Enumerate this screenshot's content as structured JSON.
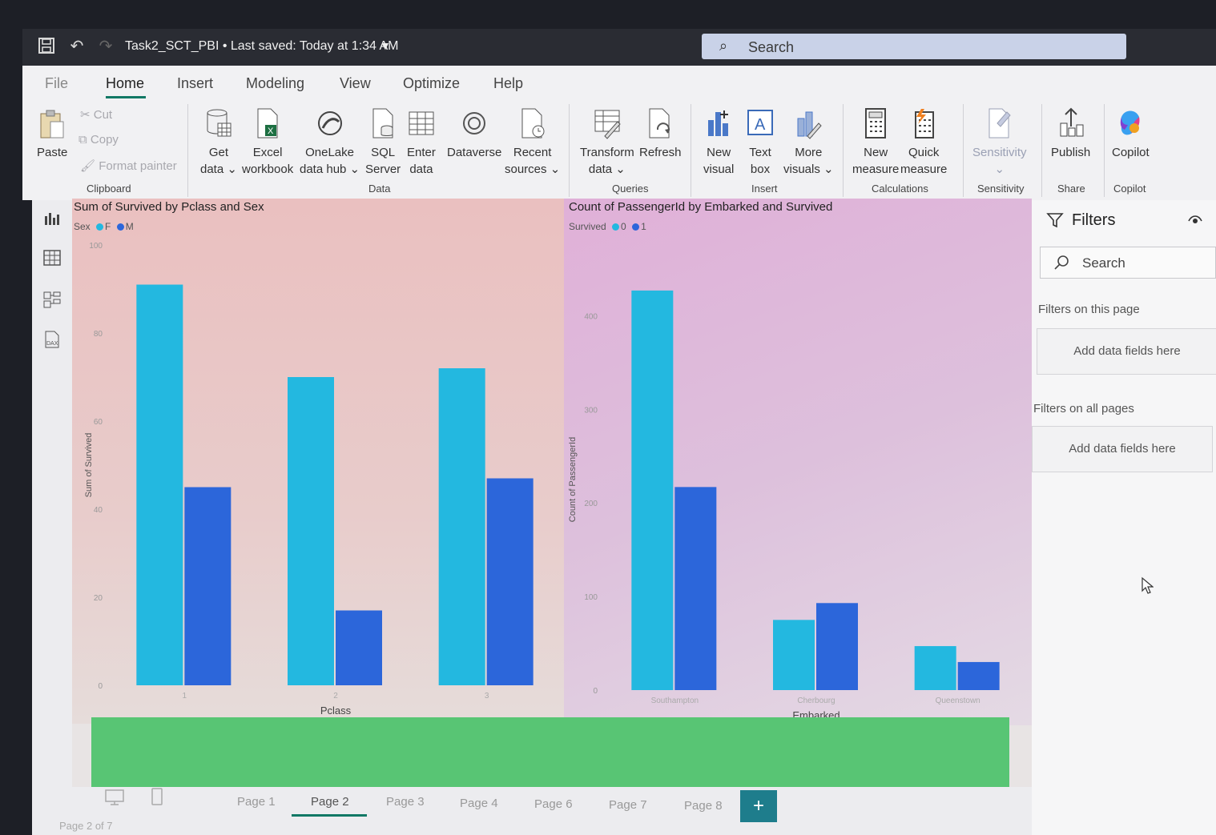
{
  "titlebar": {
    "document_title": "Task2_SCT_PBI • Last saved: Today at 1:34 AM",
    "search_placeholder": "Search"
  },
  "menu": [
    "File",
    "Home",
    "Insert",
    "Modeling",
    "View",
    "Optimize",
    "Help"
  ],
  "ribbon": {
    "clipboard": {
      "paste": "Paste",
      "cut": "Cut",
      "copy": "Copy",
      "format_painter": "Format painter",
      "group": "Clipboard"
    },
    "data": {
      "get_data": [
        "Get",
        "data ⌄"
      ],
      "excel": [
        "Excel",
        "workbook"
      ],
      "onelake": [
        "OneLake",
        "data hub ⌄"
      ],
      "sql": [
        "SQL",
        "Server"
      ],
      "enter": [
        "Enter",
        "data"
      ],
      "dataverse": [
        "Dataverse",
        ""
      ],
      "recent": [
        "Recent",
        "sources ⌄"
      ],
      "group": "Data"
    },
    "queries": {
      "transform": [
        "Transform",
        "data ⌄"
      ],
      "refresh": [
        "Refresh",
        ""
      ],
      "group": "Queries"
    },
    "insert": {
      "new_visual": [
        "New",
        "visual"
      ],
      "text_box": [
        "Text",
        "box"
      ],
      "more_visuals": [
        "More",
        "visuals ⌄"
      ],
      "group": "Insert"
    },
    "calculations": {
      "new_measure": [
        "New",
        "measure"
      ],
      "quick_measure": [
        "Quick",
        "measure"
      ],
      "group": "Calculations"
    },
    "sensitivity": {
      "label": "Sensitivity",
      "caret": "⌄",
      "group": "Sensitivity"
    },
    "share": {
      "publish": "Publish",
      "group": "Share"
    },
    "copilot": {
      "label": "Copilot",
      "group": "Copilot"
    }
  },
  "chart_data": [
    {
      "type": "bar",
      "title": "Sum of Survived by Pclass and Sex",
      "legend_title": "Sex",
      "categories": [
        "1",
        "2",
        "3"
      ],
      "series": [
        {
          "name": "F",
          "values": [
            91,
            70,
            72
          ]
        },
        {
          "name": "M",
          "values": [
            45,
            17,
            47
          ]
        }
      ],
      "xlabel": "Pclass",
      "ylabel": "Sum of Survived",
      "ylim": [
        0,
        100
      ],
      "yticks": [
        "0",
        "20",
        "40",
        "60",
        "80",
        "100"
      ],
      "colors": [
        "#23b8e0",
        "#2c66da"
      ]
    },
    {
      "type": "bar",
      "title": "Count of PassengerId by Embarked and Survived",
      "legend_title": "Survived",
      "categories": [
        "Southampton",
        "Cherbourg",
        "Queenstown"
      ],
      "series": [
        {
          "name": "0",
          "values": [
            427,
            75,
            47
          ]
        },
        {
          "name": "1",
          "values": [
            217,
            93,
            30
          ]
        }
      ],
      "xlabel": "Embarked",
      "ylabel": "Count of PassengerId",
      "ylim": [
        0,
        450
      ],
      "yticks": [
        "0",
        "100",
        "200",
        "300",
        "400"
      ],
      "colors": [
        "#23b8e0",
        "#2c66da"
      ]
    }
  ],
  "filters": {
    "title": "Filters",
    "search_placeholder": "Search",
    "this_page": "Filters on this page",
    "all_pages": "Filters on all pages",
    "add_fields": "Add data fields here"
  },
  "pages": [
    "Page 1",
    "Page 2",
    "Page 3",
    "Page 4",
    "Page 6",
    "Page 7",
    "Page 8"
  ],
  "active_page": "Page 2",
  "add_page": "+",
  "status": "Page 2 of 7",
  "colors": {
    "accent": "#117865",
    "band": "#58c574"
  }
}
